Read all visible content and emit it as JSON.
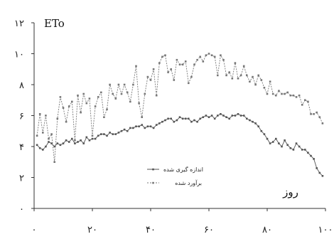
{
  "chart_data": {
    "type": "line",
    "ylabel": "ETo",
    "xlabel": "روز",
    "xlim": [
      0,
      100
    ],
    "ylim": [
      0,
      12
    ],
    "x_ticks": [
      0,
      20,
      40,
      60,
      80,
      100
    ],
    "x_tick_labels": [
      "۰",
      "۲۰",
      "۴۰",
      "۶۰",
      "۸۰",
      "۱۰۰"
    ],
    "y_ticks": [
      0,
      2,
      4,
      6,
      8,
      10,
      12
    ],
    "y_tick_labels": [
      "۰",
      "۲",
      "۴",
      "۶",
      "۸",
      "۱۰",
      "۱۲"
    ],
    "grid": false,
    "legend_position": "center",
    "series": [
      {
        "name": "اندازه گیری شده",
        "style": "solid",
        "color": "#555555",
        "values": [
          4.1,
          3.9,
          3.8,
          4.0,
          4.3,
          4.2,
          4.0,
          4.2,
          4.1,
          4.2,
          4.4,
          4.3,
          4.5,
          4.2,
          4.3,
          4.4,
          4.2,
          4.6,
          4.4,
          4.5,
          4.5,
          4.7,
          4.8,
          4.8,
          4.7,
          4.9,
          4.8,
          4.8,
          4.9,
          5.0,
          5.1,
          5.0,
          5.2,
          5.2,
          5.3,
          5.3,
          5.4,
          5.2,
          5.3,
          5.3,
          5.2,
          5.4,
          5.5,
          5.6,
          5.7,
          5.8,
          5.8,
          5.6,
          5.7,
          5.9,
          5.8,
          5.8,
          5.8,
          5.6,
          5.7,
          5.6,
          5.8,
          5.9,
          6.0,
          5.9,
          6.0,
          5.8,
          6.0,
          6.1,
          6.0,
          5.9,
          5.8,
          6.0,
          6.0,
          6.1,
          6.0,
          6.0,
          5.8,
          5.7,
          5.6,
          5.5,
          5.3,
          5.0,
          4.8,
          4.5,
          4.2,
          4.3,
          4.5,
          4.2,
          4.0,
          4.4,
          4.1,
          3.9,
          3.8,
          4.2,
          4.0,
          3.8,
          3.8,
          3.6,
          3.4,
          3.2,
          2.6,
          2.3,
          2.1
        ]
      },
      {
        "name": "برآورد شده",
        "style": "dashed",
        "color": "#777777",
        "values": [
          4.7,
          6.1,
          4.9,
          6.0,
          4.5,
          4.8,
          3.0,
          5.8,
          7.2,
          6.5,
          5.6,
          6.6,
          6.9,
          4.4,
          7.3,
          6.2,
          7.4,
          6.8,
          7.1,
          4.7,
          6.6,
          7.2,
          7.5,
          5.9,
          6.4,
          8.0,
          7.4,
          7.1,
          8.0,
          7.4,
          8.0,
          7.5,
          6.9,
          8.0,
          9.2,
          6.8,
          5.9,
          7.4,
          8.5,
          8.3,
          9.0,
          7.3,
          9.4,
          9.8,
          9.9,
          8.8,
          9.0,
          8.3,
          9.6,
          9.3,
          9.3,
          9.5,
          8.1,
          8.5,
          9.3,
          9.6,
          9.8,
          9.5,
          9.9,
          10.0,
          9.9,
          9.8,
          8.6,
          9.9,
          9.6,
          8.6,
          8.8,
          8.4,
          9.4,
          8.4,
          8.6,
          9.2,
          8.6,
          8.2,
          8.5,
          8.0,
          8.6,
          8.3,
          7.8,
          7.4,
          8.2,
          7.4,
          7.3,
          7.6,
          7.4,
          7.4,
          7.5,
          7.3,
          7.3,
          7.2,
          7.3,
          6.7,
          7.0,
          6.9,
          6.1,
          6.1,
          6.2,
          5.9,
          5.5
        ]
      }
    ]
  }
}
